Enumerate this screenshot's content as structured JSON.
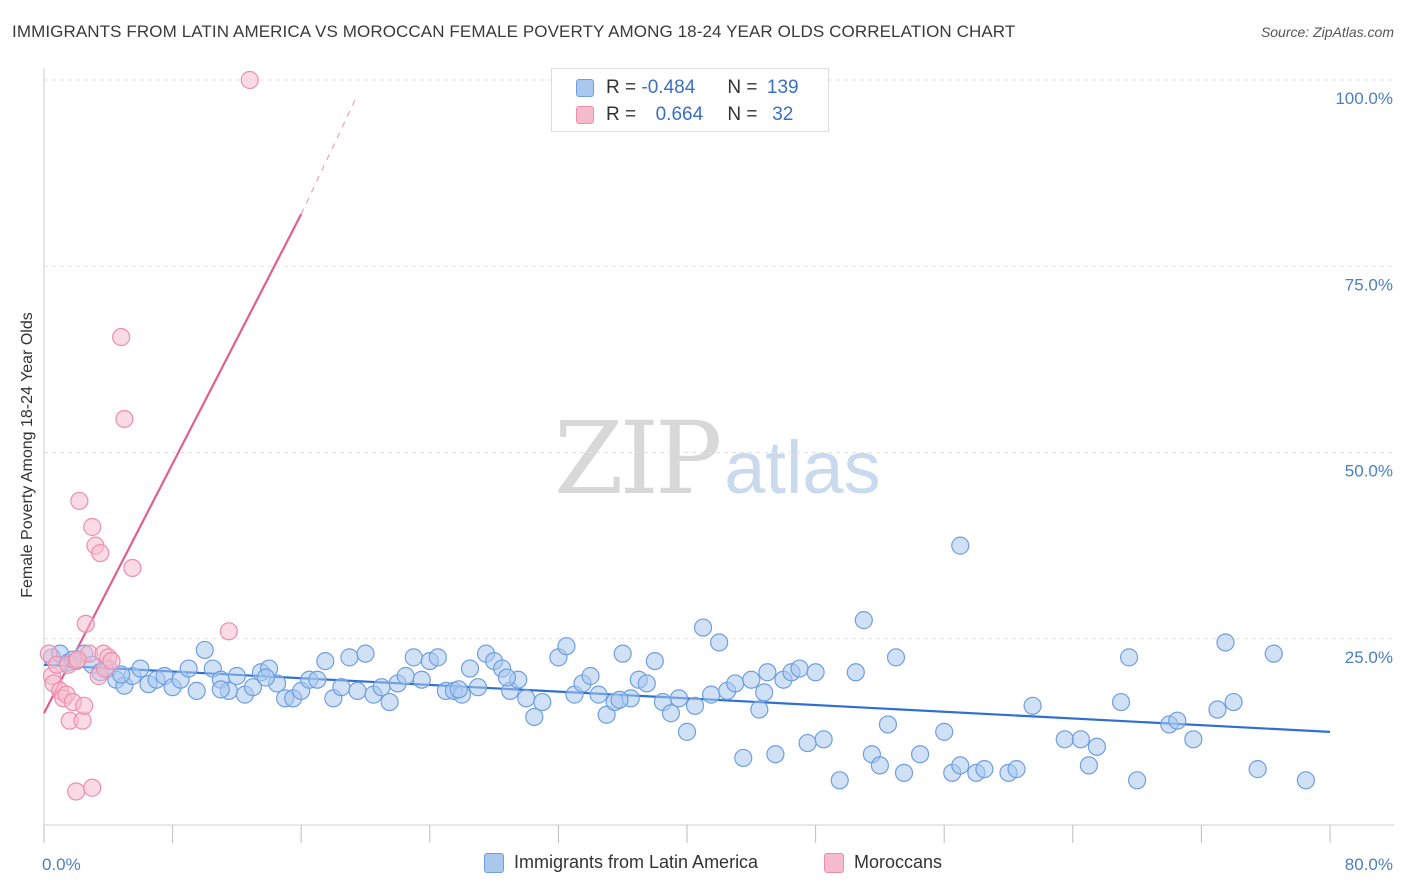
{
  "title": "IMMIGRANTS FROM LATIN AMERICA VS MOROCCAN FEMALE POVERTY AMONG 18-24 YEAR OLDS CORRELATION CHART",
  "source": "Source: ZipAtlas.com",
  "watermark": {
    "zip": "ZIP",
    "atlas": "atlas"
  },
  "colors": {
    "blue_fill": "#aac8ee",
    "blue_stroke": "#6f9fe0",
    "blue_line": "#2e6fd2",
    "pink_fill": "#f6bccd",
    "pink_stroke": "#ec8fad",
    "pink_line": "#e0608d",
    "grid": "#e3e3e3",
    "tick_text": "#4a7fc4"
  },
  "legend": {
    "r_label": "R =",
    "n_label": "N =",
    "rows": [
      {
        "r": "-0.484",
        "n": "139",
        "series": "blue"
      },
      {
        "r": "0.664",
        "n": "32",
        "series": "pink"
      }
    ]
  },
  "chart_data": {
    "type": "scatter",
    "title": "IMMIGRANTS FROM LATIN AMERICA VS MOROCCAN FEMALE POVERTY AMONG 18-24 YEAR OLDS CORRELATION CHART",
    "xlabel": "",
    "ylabel": "Female Poverty Among 18-24 Year Olds",
    "xlim": [
      0,
      80
    ],
    "ylim": [
      0,
      100
    ],
    "x_tick_labels": [
      "0.0%",
      "80.0%"
    ],
    "y_ticks": [
      25,
      50,
      75,
      100
    ],
    "y_tick_labels": [
      "25.0%",
      "50.0%",
      "75.0%",
      "100.0%"
    ],
    "grid": true,
    "legend_position": "top-center",
    "series": [
      {
        "name": "Immigrants from Latin America",
        "color": "#aac8ee",
        "trend": {
          "x0": 0,
          "y0": 21.5,
          "x1": 80,
          "y1": 12.5
        },
        "points": [
          [
            0.5,
            22.5
          ],
          [
            1.0,
            23.0
          ],
          [
            1.5,
            21.8
          ],
          [
            2.0,
            22.0
          ],
          [
            2.5,
            23.0
          ],
          [
            3.0,
            21.5
          ],
          [
            3.5,
            20.5
          ],
          [
            4.0,
            21.0
          ],
          [
            4.5,
            19.5
          ],
          [
            5.0,
            18.7
          ],
          [
            5.5,
            20.0
          ],
          [
            6.0,
            21.0
          ],
          [
            6.5,
            18.9
          ],
          [
            7.0,
            19.5
          ],
          [
            7.5,
            20.0
          ],
          [
            8.0,
            18.5
          ],
          [
            8.5,
            19.5
          ],
          [
            9.0,
            21.0
          ],
          [
            9.5,
            18.0
          ],
          [
            10.0,
            23.5
          ],
          [
            10.5,
            21.0
          ],
          [
            11.0,
            19.5
          ],
          [
            11.5,
            18.0
          ],
          [
            12.0,
            20.0
          ],
          [
            12.5,
            17.5
          ],
          [
            13.0,
            18.5
          ],
          [
            13.5,
            20.5
          ],
          [
            14.0,
            21.0
          ],
          [
            14.5,
            19.0
          ],
          [
            15.0,
            17.0
          ],
          [
            15.5,
            17.0
          ],
          [
            16.0,
            18.0
          ],
          [
            16.5,
            19.5
          ],
          [
            17.0,
            19.5
          ],
          [
            17.5,
            22.0
          ],
          [
            18.0,
            17.0
          ],
          [
            18.5,
            18.5
          ],
          [
            19.0,
            22.5
          ],
          [
            19.5,
            18.0
          ],
          [
            20.0,
            23.0
          ],
          [
            20.5,
            17.5
          ],
          [
            21.0,
            18.5
          ],
          [
            21.5,
            16.5
          ],
          [
            22.0,
            19.0
          ],
          [
            22.5,
            20.0
          ],
          [
            23.0,
            22.5
          ],
          [
            23.5,
            19.5
          ],
          [
            24.0,
            22.0
          ],
          [
            24.5,
            22.5
          ],
          [
            25.0,
            18.0
          ],
          [
            25.5,
            18.0
          ],
          [
            26.0,
            17.5
          ],
          [
            26.5,
            21.0
          ],
          [
            27.0,
            18.5
          ],
          [
            27.5,
            23.0
          ],
          [
            28.0,
            22.0
          ],
          [
            28.5,
            21.0
          ],
          [
            29.0,
            18.0
          ],
          [
            29.5,
            19.5
          ],
          [
            30.0,
            17.0
          ],
          [
            30.5,
            14.5
          ],
          [
            31.0,
            16.5
          ],
          [
            32.0,
            22.5
          ],
          [
            32.5,
            24.0
          ],
          [
            33.0,
            17.5
          ],
          [
            33.5,
            19.0
          ],
          [
            34.0,
            20.0
          ],
          [
            34.5,
            17.5
          ],
          [
            35.0,
            14.8
          ],
          [
            35.5,
            16.5
          ],
          [
            36.0,
            23.0
          ],
          [
            36.5,
            17.0
          ],
          [
            37.0,
            19.5
          ],
          [
            37.5,
            19.0
          ],
          [
            38.0,
            22.0
          ],
          [
            38.5,
            16.5
          ],
          [
            39.0,
            15.0
          ],
          [
            39.5,
            17.0
          ],
          [
            40.0,
            12.5
          ],
          [
            40.5,
            16.0
          ],
          [
            41.0,
            26.5
          ],
          [
            41.5,
            17.5
          ],
          [
            42.0,
            24.5
          ],
          [
            42.5,
            18.0
          ],
          [
            43.0,
            19.0
          ],
          [
            43.5,
            9.0
          ],
          [
            44.0,
            19.5
          ],
          [
            44.5,
            15.5
          ],
          [
            45.0,
            20.5
          ],
          [
            45.5,
            9.5
          ],
          [
            46.0,
            19.5
          ],
          [
            46.5,
            20.5
          ],
          [
            47.0,
            21.0
          ],
          [
            47.5,
            11.0
          ],
          [
            48.0,
            20.5
          ],
          [
            48.5,
            11.5
          ],
          [
            49.5,
            6.0
          ],
          [
            50.5,
            20.5
          ],
          [
            51.0,
            27.5
          ],
          [
            51.5,
            9.5
          ],
          [
            52.0,
            8.0
          ],
          [
            52.5,
            13.5
          ],
          [
            53.0,
            22.5
          ],
          [
            53.5,
            7.0
          ],
          [
            54.5,
            9.5
          ],
          [
            56.0,
            12.5
          ],
          [
            56.5,
            7.0
          ],
          [
            57.0,
            8.0
          ],
          [
            58.0,
            7.0
          ],
          [
            58.5,
            7.5
          ],
          [
            60.0,
            7.0
          ],
          [
            60.5,
            7.5
          ],
          [
            61.5,
            16.0
          ],
          [
            63.5,
            11.5
          ],
          [
            64.5,
            11.5
          ],
          [
            65.0,
            8.0
          ],
          [
            65.5,
            10.5
          ],
          [
            67.0,
            16.5
          ],
          [
            67.5,
            22.5
          ],
          [
            68.0,
            6.0
          ],
          [
            70.0,
            13.5
          ],
          [
            70.5,
            14.0
          ],
          [
            71.5,
            11.5
          ],
          [
            73.0,
            15.5
          ],
          [
            73.5,
            24.5
          ],
          [
            74.0,
            16.5
          ],
          [
            75.5,
            7.5
          ],
          [
            76.5,
            23.0
          ],
          [
            78.5,
            6.0
          ],
          [
            1.8,
            22.2
          ],
          [
            4.8,
            20.2
          ],
          [
            11.0,
            18.2
          ],
          [
            13.8,
            19.8
          ],
          [
            25.8,
            18.2
          ],
          [
            28.8,
            19.8
          ],
          [
            35.8,
            16.8
          ],
          [
            44.8,
            17.8
          ],
          [
            57.0,
            37.5
          ]
        ]
      },
      {
        "name": "Moroccans",
        "color": "#f6bccd",
        "trend": {
          "x0": 0,
          "y0": 15.0,
          "x1": 16,
          "y1": 82.0,
          "dashed_to": {
            "x": 19.5,
            "y": 98.0
          }
        },
        "points": [
          [
            0.3,
            23.0
          ],
          [
            0.5,
            20.0
          ],
          [
            0.6,
            19.0
          ],
          [
            0.8,
            21.5
          ],
          [
            1.0,
            18.0
          ],
          [
            1.2,
            17.0
          ],
          [
            1.4,
            17.5
          ],
          [
            1.5,
            21.5
          ],
          [
            1.6,
            14.0
          ],
          [
            1.8,
            16.5
          ],
          [
            2.0,
            22.0
          ],
          [
            2.0,
            4.5
          ],
          [
            2.2,
            43.5
          ],
          [
            2.4,
            14.0
          ],
          [
            2.5,
            16.0
          ],
          [
            2.6,
            27.0
          ],
          [
            2.8,
            23.0
          ],
          [
            3.0,
            40.0
          ],
          [
            3.2,
            37.5
          ],
          [
            3.4,
            20.0
          ],
          [
            3.5,
            36.5
          ],
          [
            3.0,
            5.0
          ],
          [
            3.7,
            23.0
          ],
          [
            3.8,
            21.0
          ],
          [
            4.0,
            22.5
          ],
          [
            4.2,
            22.0
          ],
          [
            4.8,
            65.5
          ],
          [
            5.0,
            54.5
          ],
          [
            5.5,
            34.5
          ],
          [
            11.5,
            26.0
          ],
          [
            12.8,
            100.0
          ],
          [
            2.1,
            22.2
          ]
        ]
      }
    ]
  },
  "bottom_legend": [
    {
      "label": "Immigrants from Latin America",
      "series": "blue"
    },
    {
      "label": "Moroccans",
      "series": "pink"
    }
  ]
}
